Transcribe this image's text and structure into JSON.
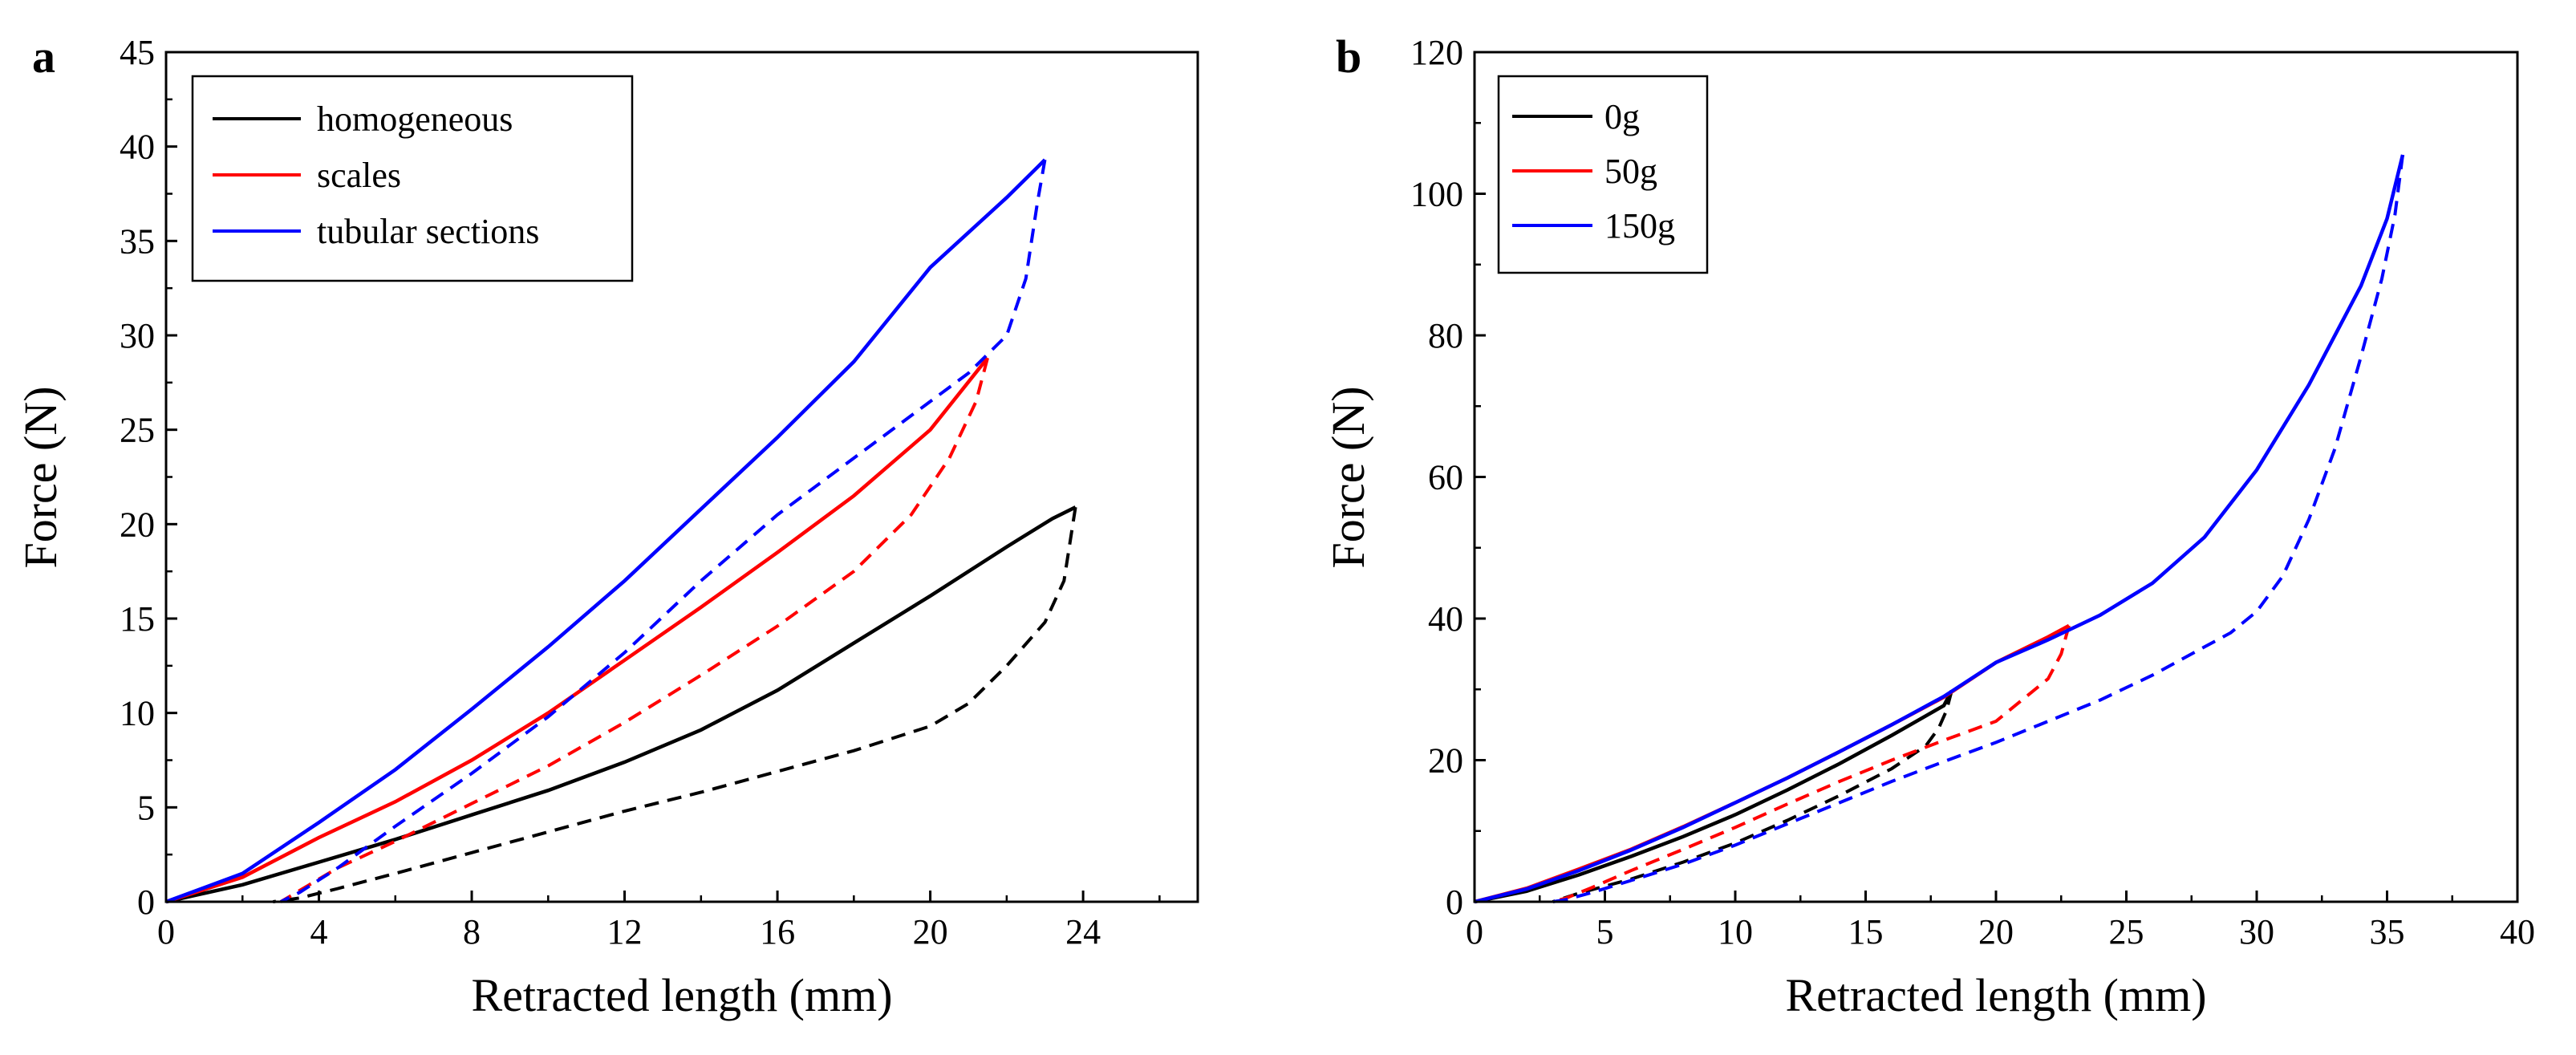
{
  "chart_data": [
    {
      "panel_label": "a",
      "type": "line",
      "xlabel": "Retracted length (mm)",
      "ylabel": "Force (N)",
      "xlim": [
        0,
        27
      ],
      "ylim": [
        0,
        45
      ],
      "xticks": [
        "0",
        "4",
        "8",
        "12",
        "16",
        "20",
        "24"
      ],
      "xtick_values": [
        0,
        4,
        8,
        12,
        16,
        20,
        24
      ],
      "yticks": [
        "0",
        "5",
        "10",
        "15",
        "20",
        "25",
        "30",
        "35",
        "40",
        "45"
      ],
      "ytick_values": [
        0,
        5,
        10,
        15,
        20,
        25,
        30,
        35,
        40,
        45
      ],
      "legend_position": "top-left",
      "series": [
        {
          "name": "homogeneous",
          "color": "#000000",
          "loading": [
            [
              0,
              0
            ],
            [
              2,
              0.9
            ],
            [
              4,
              2.1
            ],
            [
              6,
              3.3
            ],
            [
              8,
              4.6
            ],
            [
              10,
              5.9
            ],
            [
              12,
              7.4
            ],
            [
              14,
              9.1
            ],
            [
              16,
              11.2
            ],
            [
              18,
              13.7
            ],
            [
              20,
              16.2
            ],
            [
              22,
              18.8
            ],
            [
              23.2,
              20.3
            ],
            [
              23.8,
              20.9
            ]
          ],
          "unloading": [
            [
              23.8,
              20.9
            ],
            [
              23.5,
              17.0
            ],
            [
              23,
              14.8
            ],
            [
              22,
              12.5
            ],
            [
              21,
              10.5
            ],
            [
              20,
              9.3
            ],
            [
              18,
              8.0
            ],
            [
              16,
              6.9
            ],
            [
              14,
              5.8
            ],
            [
              12,
              4.8
            ],
            [
              10,
              3.7
            ],
            [
              8,
              2.6
            ],
            [
              6,
              1.5
            ],
            [
              4.5,
              0.7
            ],
            [
              3.5,
              0.2
            ],
            [
              2.8,
              0
            ]
          ]
        },
        {
          "name": "scales",
          "color": "#ff0000",
          "loading": [
            [
              0,
              0
            ],
            [
              2,
              1.3
            ],
            [
              4,
              3.4
            ],
            [
              6,
              5.3
            ],
            [
              8,
              7.5
            ],
            [
              10,
              10.0
            ],
            [
              12,
              12.8
            ],
            [
              14,
              15.6
            ],
            [
              16,
              18.5
            ],
            [
              18,
              21.5
            ],
            [
              20,
              25.0
            ],
            [
              21.5,
              28.8
            ]
          ],
          "unloading": [
            [
              21.5,
              28.8
            ],
            [
              21.2,
              26.5
            ],
            [
              20.5,
              23.5
            ],
            [
              19.5,
              20.5
            ],
            [
              18,
              17.5
            ],
            [
              16,
              14.6
            ],
            [
              14,
              12.0
            ],
            [
              12,
              9.5
            ],
            [
              10,
              7.2
            ],
            [
              8,
              5.2
            ],
            [
              6,
              3.2
            ],
            [
              4.5,
              1.8
            ],
            [
              3.5,
              0.6
            ],
            [
              3,
              0
            ]
          ]
        },
        {
          "name": "tubular sections",
          "color": "#0000ff",
          "loading": [
            [
              0,
              0
            ],
            [
              2,
              1.5
            ],
            [
              4,
              4.2
            ],
            [
              6,
              7.0
            ],
            [
              8,
              10.2
            ],
            [
              10,
              13.5
            ],
            [
              12,
              17.0
            ],
            [
              14,
              20.8
            ],
            [
              16,
              24.6
            ],
            [
              18,
              28.6
            ],
            [
              20,
              33.6
            ],
            [
              22,
              37.3
            ],
            [
              22.8,
              38.9
            ],
            [
              23,
              39.3
            ]
          ],
          "unloading": [
            [
              23,
              39.3
            ],
            [
              22.8,
              37.0
            ],
            [
              22.5,
              33.0
            ],
            [
              22,
              30.0
            ],
            [
              21,
              28.0
            ],
            [
              20,
              26.5
            ],
            [
              18,
              23.5
            ],
            [
              16,
              20.5
            ],
            [
              14,
              17.0
            ],
            [
              12,
              13.2
            ],
            [
              10,
              9.8
            ],
            [
              8,
              6.8
            ],
            [
              6,
              4.0
            ],
            [
              4.5,
              1.8
            ],
            [
              3.5,
              0.5
            ],
            [
              3,
              0
            ]
          ]
        }
      ]
    },
    {
      "panel_label": "b",
      "type": "line",
      "xlabel": "Retracted length (mm)",
      "ylabel": "Force (N)",
      "xlim": [
        0,
        40
      ],
      "ylim": [
        0,
        120
      ],
      "xticks": [
        "0",
        "5",
        "10",
        "15",
        "20",
        "25",
        "30",
        "35",
        "40"
      ],
      "xtick_values": [
        0,
        5,
        10,
        15,
        20,
        25,
        30,
        35,
        40
      ],
      "yticks": [
        "0",
        "20",
        "40",
        "60",
        "80",
        "100",
        "120"
      ],
      "ytick_values": [
        0,
        20,
        40,
        60,
        80,
        100,
        120
      ],
      "legend_position": "top-left",
      "series": [
        {
          "name": "0g",
          "color": "#000000",
          "loading": [
            [
              0,
              0
            ],
            [
              2,
              1.5
            ],
            [
              4,
              3.8
            ],
            [
              6,
              6.4
            ],
            [
              8,
              9.2
            ],
            [
              10,
              12.3
            ],
            [
              12,
              15.8
            ],
            [
              14,
              19.5
            ],
            [
              16,
              23.5
            ],
            [
              18,
              27.7
            ],
            [
              18.3,
              29.8
            ]
          ],
          "unloading": [
            [
              18.3,
              29.8
            ],
            [
              18.1,
              27.0
            ],
            [
              17.8,
              24.5
            ],
            [
              17.3,
              22.0
            ],
            [
              16,
              18.8
            ],
            [
              14,
              15.0
            ],
            [
              12,
              11.5
            ],
            [
              10,
              8.3
            ],
            [
              8,
              5.6
            ],
            [
              6,
              3.2
            ],
            [
              4,
              1.2
            ],
            [
              3,
              0
            ]
          ]
        },
        {
          "name": "50g",
          "color": "#ff0000",
          "loading": [
            [
              0,
              0
            ],
            [
              2,
              1.9
            ],
            [
              4,
              4.6
            ],
            [
              6,
              7.4
            ],
            [
              8,
              10.6
            ],
            [
              10,
              14.0
            ],
            [
              12,
              17.5
            ],
            [
              14,
              21.2
            ],
            [
              16,
              25.0
            ],
            [
              18,
              28.9
            ],
            [
              20,
              33.8
            ],
            [
              22,
              37.4
            ],
            [
              22.8,
              39.0
            ]
          ],
          "unloading": [
            [
              22.8,
              39.0
            ],
            [
              22.5,
              35.0
            ],
            [
              22,
              31.5
            ],
            [
              21,
              28.5
            ],
            [
              20,
              25.5
            ],
            [
              18,
              22.8
            ],
            [
              16,
              20.0
            ],
            [
              14,
              17.0
            ],
            [
              12,
              13.8
            ],
            [
              10,
              10.5
            ],
            [
              8,
              7.4
            ],
            [
              6,
              4.4
            ],
            [
              4.5,
              2.0
            ],
            [
              3.5,
              0.5
            ],
            [
              3,
              0
            ]
          ]
        },
        {
          "name": "150g",
          "color": "#0000ff",
          "loading": [
            [
              0,
              0
            ],
            [
              2,
              1.8
            ],
            [
              4,
              4.4
            ],
            [
              6,
              7.3
            ],
            [
              8,
              10.5
            ],
            [
              10,
              14.0
            ],
            [
              12,
              17.5
            ],
            [
              14,
              21.2
            ],
            [
              16,
              25.0
            ],
            [
              18,
              29.0
            ],
            [
              20,
              33.8
            ],
            [
              22,
              37.0
            ],
            [
              24,
              40.5
            ],
            [
              26,
              45.0
            ],
            [
              28,
              51.5
            ],
            [
              30,
              61.0
            ],
            [
              32,
              73.0
            ],
            [
              34,
              87.0
            ],
            [
              35,
              96.5
            ],
            [
              35.6,
              105.5
            ]
          ],
          "unloading": [
            [
              35.6,
              105.5
            ],
            [
              35.3,
              97.0
            ],
            [
              34.8,
              88.0
            ],
            [
              34,
              77.0
            ],
            [
              33,
              64.0
            ],
            [
              32,
              54.0
            ],
            [
              31,
              46.0
            ],
            [
              30,
              41.0
            ],
            [
              29,
              38.0
            ],
            [
              28,
              36.0
            ],
            [
              26,
              32.0
            ],
            [
              24,
              28.5
            ],
            [
              22,
              25.5
            ],
            [
              20,
              22.5
            ],
            [
              18,
              19.8
            ],
            [
              16,
              17.0
            ],
            [
              14,
              14.0
            ],
            [
              12,
              11.0
            ],
            [
              10,
              8.0
            ],
            [
              8,
              5.3
            ],
            [
              6,
              3.0
            ],
            [
              4.5,
              1.3
            ],
            [
              3.5,
              0.3
            ],
            [
              3,
              0
            ]
          ]
        }
      ]
    }
  ]
}
